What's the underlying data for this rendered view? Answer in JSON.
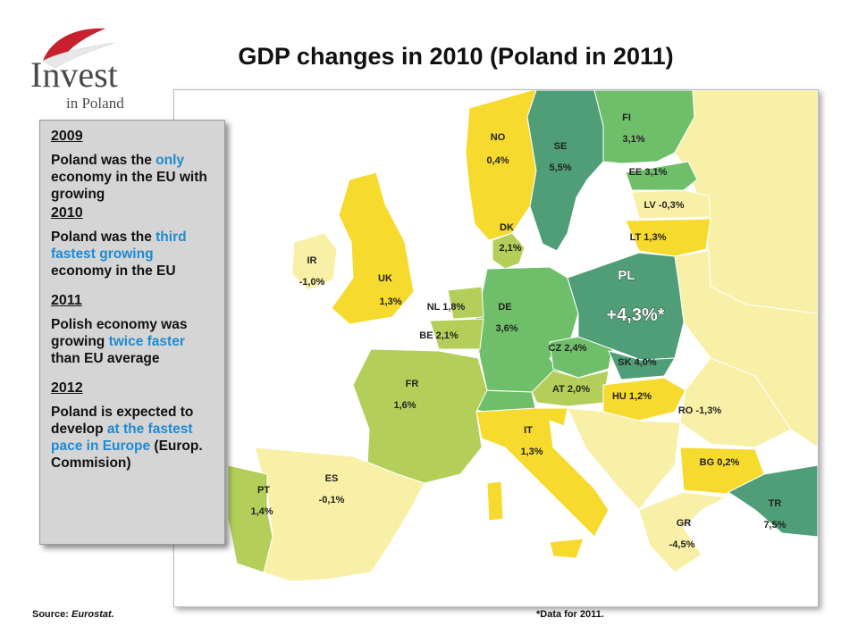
{
  "logo": {
    "word": "Invest",
    "sub": "in Poland"
  },
  "title": "GDP changes in 2010 (Poland in 2011)",
  "colors": {
    "sea": "#ffffff",
    "dark_green": "#4f9e78",
    "mid_green": "#6fbf6a",
    "light_green": "#b3cf5a",
    "yellow": "#f6da2e",
    "pale_yellow": "#f9f0a8",
    "highlight_text": "#1f8ad0"
  },
  "info_box": {
    "y2009": "2009",
    "t2009_a": "Poland was the ",
    "t2009_hl": "only",
    "t2009_b": " economy in the EU with growing",
    "y2010": "2010",
    "t2010_a": "Poland was the ",
    "t2010_hl": "third fastest growing",
    "t2010_b": " economy in the EU",
    "y2011": "2011",
    "t2011_a": "Polish economy was growing ",
    "t2011_hl": "twice faster",
    "t2011_b": " than EU average",
    "y2012": "2012",
    "t2012_a": "Poland is expected to develop ",
    "t2012_hl": "at the fastest pace in Europe",
    "t2012_b": " (Europ. Commision)"
  },
  "countries": {
    "no": {
      "code": "NO",
      "value": "0,4%"
    },
    "se": {
      "code": "SE",
      "value": "5,5%"
    },
    "fi": {
      "code": "FI",
      "value": "3,1%"
    },
    "ee": {
      "label": "EE 3,1%"
    },
    "lv": {
      "label": "LV -0,3%"
    },
    "lt": {
      "label": "LT 1,3%"
    },
    "dk": {
      "code": "DK",
      "value": "2,1%"
    },
    "ir": {
      "code": "IR",
      "value": "-1,0%"
    },
    "uk": {
      "code": "UK",
      "value": "1,3%"
    },
    "nl": {
      "label": "NL 1,8%"
    },
    "be": {
      "label": "BE 2,1%"
    },
    "de": {
      "code": "DE",
      "value": "3,6%"
    },
    "pl": {
      "code": "PL",
      "value": "+4,3%*"
    },
    "cz": {
      "label": "CZ 2,4%"
    },
    "sk": {
      "label": "SK 4,0%"
    },
    "at": {
      "label": "AT 2,0%"
    },
    "hu": {
      "label": "HU 1,2%"
    },
    "ro": {
      "label": "RO -1,3%"
    },
    "fr": {
      "code": "FR",
      "value": "1,6%"
    },
    "it": {
      "code": "IT",
      "value": "1,3%"
    },
    "bg": {
      "label": "BG 0,2%"
    },
    "es": {
      "code": "ES",
      "value": "-0,1%"
    },
    "pt": {
      "code": "PT",
      "value": "1,4%"
    },
    "gr": {
      "code": "GR",
      "value": "-4,5%"
    },
    "tr": {
      "code": "TR",
      "value": "7,5%"
    }
  },
  "source_label": "Source: ",
  "source_name": "Eurostat.",
  "footnote": "*Data for 2011."
}
